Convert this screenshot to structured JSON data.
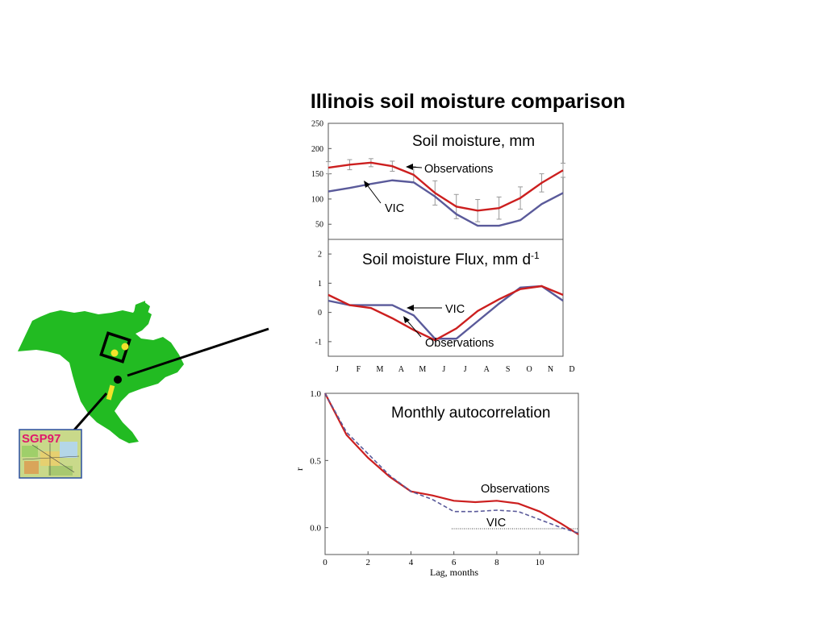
{
  "title": "Illinois soil moisture comparison",
  "colors": {
    "observations": "#cc1f1f",
    "vic": "#5a5a9a",
    "land": "#22bb22",
    "marker": "#f2e22a"
  },
  "inset": {
    "label": "SGP97",
    "icons": [
      "north-america-map",
      "study-area-box",
      "illinois-point",
      "sgp97-site"
    ]
  },
  "chart_data": [
    {
      "type": "line",
      "title": "Soil moisture, mm",
      "categories": [
        "J",
        "F",
        "M",
        "A",
        "M",
        "J",
        "J",
        "A",
        "S",
        "O",
        "N",
        "D"
      ],
      "ylim": [
        20,
        250
      ],
      "yticks": [
        50,
        100,
        150,
        200,
        250
      ],
      "series": [
        {
          "name": "Observations",
          "values": [
            162,
            168,
            172,
            165,
            148,
            112,
            85,
            77,
            82,
            102,
            132,
            157
          ],
          "error": [
            12,
            10,
            8,
            10,
            16,
            24,
            24,
            22,
            22,
            22,
            18,
            14
          ]
        },
        {
          "name": "VIC",
          "values": [
            115,
            122,
            130,
            137,
            133,
            105,
            70,
            47,
            47,
            58,
            90,
            112
          ]
        }
      ],
      "annotations": [
        "Observations",
        "VIC"
      ]
    },
    {
      "type": "line",
      "title": "Soil moisture Flux, mm d",
      "title_sup": "-1",
      "categories": [
        "J",
        "F",
        "M",
        "A",
        "M",
        "J",
        "J",
        "A",
        "S",
        "O",
        "N",
        "D"
      ],
      "ylim": [
        -1.5,
        2.5
      ],
      "yticks": [
        -1,
        0,
        1,
        2
      ],
      "series": [
        {
          "name": "Observations",
          "values": [
            0.6,
            0.25,
            0.15,
            -0.2,
            -0.6,
            -0.95,
            -0.55,
            0.05,
            0.45,
            0.8,
            0.9,
            0.6
          ]
        },
        {
          "name": "VIC",
          "values": [
            0.4,
            0.25,
            0.25,
            0.25,
            -0.1,
            -0.9,
            -0.9,
            -0.3,
            0.3,
            0.85,
            0.9,
            0.4
          ]
        }
      ],
      "annotations": [
        "VIC",
        "Observations"
      ]
    },
    {
      "type": "line",
      "title": "Monthly autocorrelation",
      "xlabel": "Lag, months",
      "ylabel": "r",
      "xlim": [
        0,
        11.8
      ],
      "ylim": [
        -0.2,
        1.0
      ],
      "xticks": [
        0,
        2,
        4,
        6,
        8,
        10
      ],
      "yticks": [
        0.0,
        0.5,
        1.0
      ],
      "ytick_labels": [
        "0.0",
        "0.5",
        "1.0"
      ],
      "series": [
        {
          "name": "Observations",
          "x": [
            0,
            1,
            2,
            3,
            4,
            5,
            6,
            7,
            8,
            9,
            10,
            11,
            11.8
          ],
          "values": [
            1.0,
            0.69,
            0.52,
            0.38,
            0.27,
            0.24,
            0.2,
            0.19,
            0.2,
            0.18,
            0.12,
            0.03,
            -0.05
          ]
        },
        {
          "name": "VIC",
          "x": [
            0,
            1,
            2,
            3,
            4,
            5,
            6,
            7,
            8,
            9,
            10,
            11,
            11.8
          ],
          "values": [
            1.0,
            0.71,
            0.55,
            0.39,
            0.27,
            0.21,
            0.12,
            0.12,
            0.13,
            0.12,
            0.06,
            0.0,
            -0.04
          ]
        }
      ],
      "annotations": [
        "Observations",
        "VIC"
      ]
    }
  ]
}
